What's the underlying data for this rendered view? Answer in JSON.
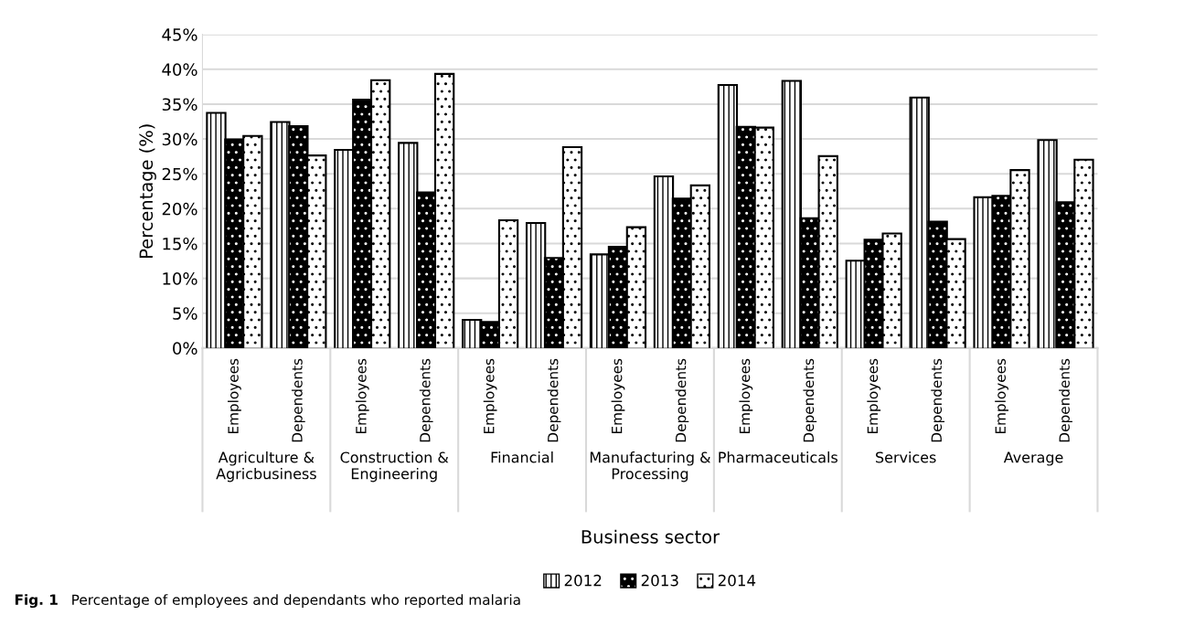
{
  "chart_data": {
    "type": "bar",
    "categories": [
      "Employees",
      "Dependents",
      "Employees",
      "Dependents",
      "Employees",
      "Dependents",
      "Employees",
      "Dependents",
      "Employees",
      "Dependents",
      "Employees",
      "Dependents",
      "Employees",
      "Dependents"
    ],
    "series": [
      {
        "name": "2012",
        "color": "#ffffff",
        "values": [
          33.6,
          32.3,
          28.3,
          29.3,
          3.9,
          17.8,
          13.3,
          24.5,
          37.6,
          38.2,
          12.4,
          35.8,
          21.5,
          29.7
        ]
      },
      {
        "name": "2013",
        "color": "#000000",
        "values": [
          29.8,
          31.7,
          35.5,
          22.2,
          3.6,
          12.8,
          14.4,
          21.3,
          31.6,
          18.5,
          15.4,
          18.0,
          21.7,
          20.8
        ]
      },
      {
        "name": "2014",
        "color": "#ffffff",
        "values": [
          30.3,
          27.5,
          38.3,
          39.2,
          18.2,
          28.7,
          17.2,
          23.2,
          31.5,
          27.4,
          16.3,
          15.5,
          25.4,
          26.9
        ]
      }
    ],
    "xlabel": "Business sector",
    "ylabel": "Percentage (%)",
    "ylim": [
      0,
      45
    ],
    "yticks": [
      {
        "value": 0,
        "label": "0%"
      },
      {
        "value": 5,
        "label": "5%"
      },
      {
        "value": 10,
        "label": "10%"
      },
      {
        "value": 15,
        "label": "15%"
      },
      {
        "value": 20,
        "label": "20%"
      },
      {
        "value": 25,
        "label": "25%"
      },
      {
        "value": 30,
        "label": "30%"
      },
      {
        "value": 35,
        "label": "35%"
      },
      {
        "value": 40,
        "label": "40%"
      },
      {
        "value": 45,
        "label": "45%"
      }
    ],
    "grid": "y",
    "legend": "bottom",
    "annotations": [
      "Agriculture &\nAgricbusiness",
      "Construction &\nEngineering",
      "Financial",
      "Manufacturing &\nProcessing",
      "Pharmaceuticals",
      "Services",
      "Average",
      "Fig. 1",
      "Percentage of employees and dependants who reported malaria"
    ]
  }
}
